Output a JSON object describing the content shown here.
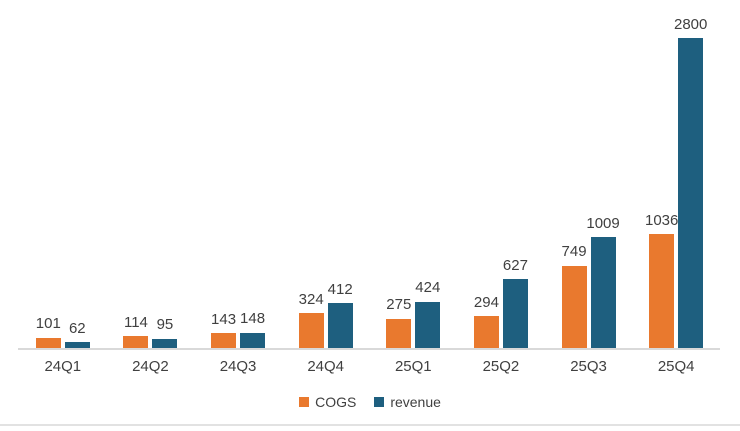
{
  "chart_data": {
    "type": "bar",
    "title": "",
    "xlabel": "",
    "ylabel": "",
    "categories": [
      "24Q1",
      "24Q2",
      "24Q3",
      "24Q4",
      "25Q1",
      "25Q2",
      "25Q3",
      "25Q4"
    ],
    "series": [
      {
        "name": "COGS",
        "color": "#E9792E",
        "values": [
          101,
          114,
          143,
          324,
          275,
          294,
          749,
          1036
        ]
      },
      {
        "name": "revenue",
        "color": "#1E5F7F",
        "values": [
          62,
          95,
          148,
          412,
          424,
          627,
          1009,
          2800
        ]
      }
    ],
    "ylim": [
      0,
      3000
    ],
    "grid": false,
    "y_axis_visible": false,
    "data_labels": true,
    "legend_position": "bottom",
    "axis_line_color": "#d9d9d9",
    "label_color": "#404040"
  }
}
